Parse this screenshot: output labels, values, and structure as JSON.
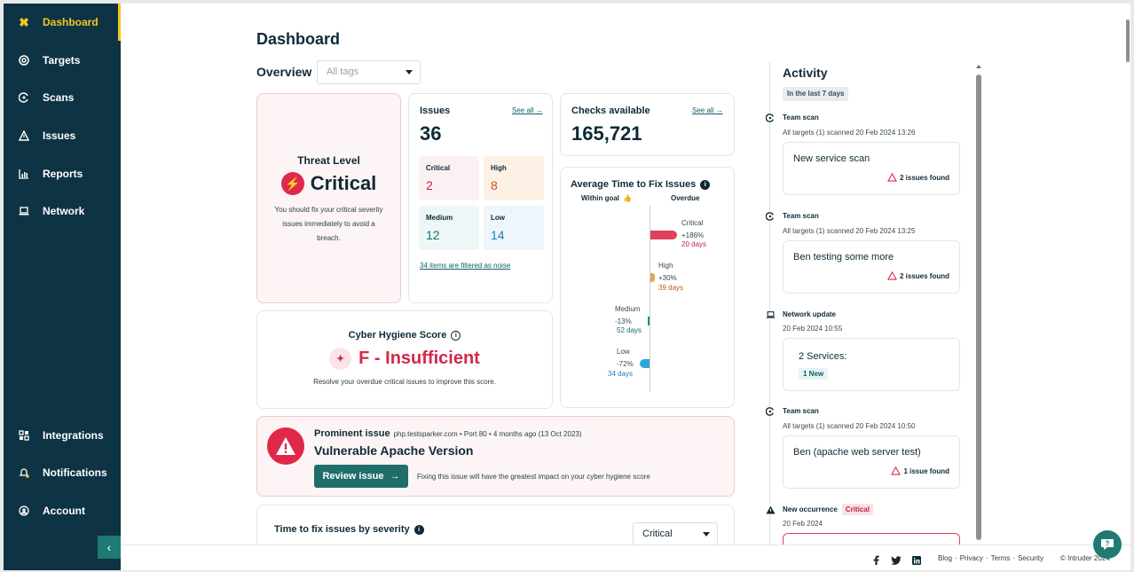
{
  "sidebar": {
    "items": [
      {
        "label": "Dashboard",
        "icon": "dashboard-icon"
      },
      {
        "label": "Targets",
        "icon": "target-icon"
      },
      {
        "label": "Scans",
        "icon": "scan-icon"
      },
      {
        "label": "Issues",
        "icon": "warning-icon"
      },
      {
        "label": "Reports",
        "icon": "chart-icon"
      },
      {
        "label": "Network",
        "icon": "laptop-icon"
      },
      {
        "label": "Integrations",
        "icon": "grid-icon"
      },
      {
        "label": "Notifications",
        "icon": "bell-icon"
      },
      {
        "label": "Account",
        "icon": "user-icon"
      }
    ],
    "active_color": "#f3c623",
    "background": "#0e3344"
  },
  "page": {
    "title": "Dashboard"
  },
  "overview": {
    "label": "Overview",
    "tags_placeholder": "All tags"
  },
  "threat": {
    "heading": "Threat Level",
    "level": "Critical",
    "description": "You should fix your critical severity issues immediately to avoid a breach."
  },
  "issues": {
    "heading": "Issues",
    "see_all": "See all",
    "total": "36",
    "severities": [
      {
        "label": "Critical",
        "value": "2",
        "color": "#c1213f",
        "bg": "#fcf1f2"
      },
      {
        "label": "High",
        "value": "8",
        "color": "#c2551a",
        "bg": "#fdf1e6"
      },
      {
        "label": "Medium",
        "value": "12",
        "color": "#0f6e73",
        "bg": "#eef7f7"
      },
      {
        "label": "Low",
        "value": "14",
        "color": "#1b7fb3",
        "bg": "#eef6fb"
      }
    ],
    "noise_link": "34 items are filtered as noise"
  },
  "checks": {
    "heading": "Checks available",
    "see_all": "See all",
    "value": "165,721"
  },
  "avg_fix": {
    "heading": "Average Time to Fix Issues",
    "within_goal": "Within goal",
    "overdue": "Overdue",
    "rows": [
      {
        "label": "Critical",
        "pct": "+186%",
        "days": "20 days",
        "side": "overdue",
        "color": "#e0405a"
      },
      {
        "label": "High",
        "pct": "+30%",
        "days": "39 days",
        "side": "overdue",
        "color": "#e8a15a"
      },
      {
        "label": "Medium",
        "pct": "-13%",
        "days": "52 days",
        "side": "within",
        "color": "#1a8f8f"
      },
      {
        "label": "Low",
        "pct": "-72%",
        "days": "34 days",
        "side": "within",
        "color": "#2aa6d9"
      }
    ]
  },
  "hygiene": {
    "heading": "Cyber Hygiene Score",
    "grade": "F - Insufficient",
    "description": "Resolve your overdue critical issues to improve this score."
  },
  "prominent": {
    "label": "Prominent issue",
    "meta": "php.testsparker.com • Port 80 • 4 months ago (13 Oct 2023)",
    "title": "Vulnerable Apache Version",
    "button": "Review issue",
    "note": "Fixing this issue will have the greatest impact on your cyber hygiene score"
  },
  "ttf": {
    "heading": "Time to fix issues by severity",
    "select": "Critical"
  },
  "activity": {
    "title": "Activity",
    "range": "In the last 7 days",
    "events": [
      {
        "type": "Team scan",
        "sub": "All targets (1) scanned 20 Feb 2024 13:26",
        "name": "New service scan",
        "found": "2 issues found"
      },
      {
        "type": "Team scan",
        "sub": "All targets (1) scanned 20 Feb 2024 13:25",
        "name": "Ben testing some more",
        "found": "2 issues found"
      },
      {
        "type": "Network update",
        "sub": "20 Feb 2024 10:55",
        "name": "2 Services:",
        "tag": "1 New"
      },
      {
        "type": "Team scan",
        "sub": "All targets (1) scanned 20 Feb 2024 10:50",
        "name": "Ben (apache web server test)",
        "found": "1 issue found"
      },
      {
        "type": "New occurrence",
        "tag": "Critical",
        "sub": "20 Feb 2024"
      }
    ]
  },
  "footer": {
    "links": [
      "Blog",
      "Privacy",
      "Terms",
      "Security"
    ],
    "copyright": "© Intruder 2024",
    "socials": [
      "facebook-icon",
      "twitter-icon",
      "linkedin-icon"
    ]
  }
}
